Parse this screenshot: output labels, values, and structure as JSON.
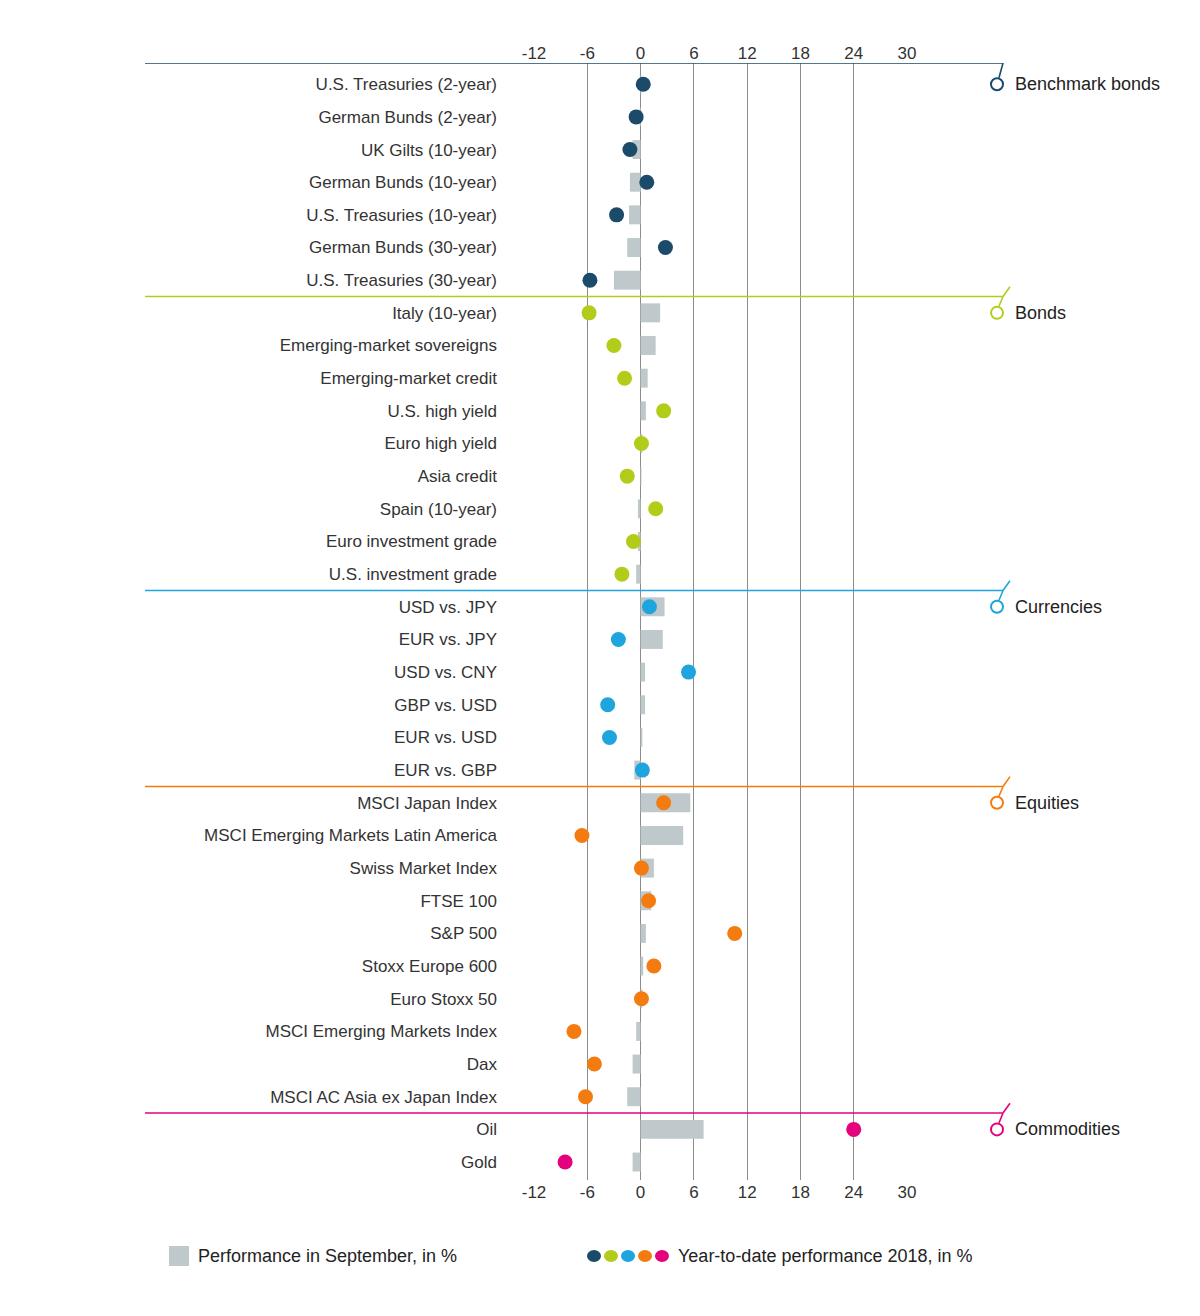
{
  "chart_data": {
    "type": "bar",
    "orientation": "horizontal",
    "grid": true,
    "xlim": [
      -12,
      30
    ],
    "xticks": [
      -12,
      -6,
      0,
      6,
      12,
      18,
      24,
      30
    ],
    "categories": [
      "U.S. Treasuries (2-year)",
      "German Bunds (2-year)",
      "UK Gilts (10-year)",
      "German Bunds (10-year)",
      "U.S. Treasuries (10-year)",
      "German Bunds (30-year)",
      "U.S. Treasuries (30-year)",
      "Italy (10-year)",
      "Emerging-market sovereigns",
      "Emerging-market credit",
      "U.S. high yield",
      "Euro high yield",
      "Asia credit",
      "Spain (10-year)",
      "Euro investment grade",
      "U.S. investment grade",
      "USD vs. JPY",
      "EUR vs. JPY",
      "USD vs. CNY",
      "GBP vs. USD",
      "EUR vs. USD",
      "EUR vs. GBP",
      "MSCI Japan Index",
      "MSCI Emerging Markets Latin America",
      "Swiss Market Index",
      "FTSE 100",
      "S&P 500",
      "Stoxx Europe 600",
      "Euro Stoxx 50",
      "MSCI Emerging Markets Index",
      "Dax",
      "MSCI AC Asia ex Japan Index",
      "Oil",
      "Gold"
    ],
    "sections": [
      {
        "name": "Benchmark bonds",
        "color": "#1b4a6b",
        "categories": [
          "U.S. Treasuries (2-year)",
          "German Bunds (2-year)",
          "UK Gilts (10-year)",
          "German Bunds (10-year)",
          "U.S. Treasuries (10-year)",
          "German Bunds (30-year)",
          "U.S. Treasuries (30-year)"
        ]
      },
      {
        "name": "Bonds",
        "color": "#b3cc1a",
        "categories": [
          "Italy (10-year)",
          "Emerging-market sovereigns",
          "Emerging-market credit",
          "U.S. high yield",
          "Euro high yield",
          "Asia credit",
          "Spain (10-year)",
          "Euro investment grade",
          "U.S. investment grade"
        ]
      },
      {
        "name": "Currencies",
        "color": "#1ea5de",
        "categories": [
          "USD vs. JPY",
          "EUR vs. JPY",
          "USD vs. CNY",
          "GBP vs. USD",
          "EUR vs. USD",
          "EUR vs. GBP"
        ]
      },
      {
        "name": "Equities",
        "color": "#f47b0f",
        "categories": [
          "MSCI Japan Index",
          "MSCI Emerging Markets Latin America",
          "Swiss Market Index",
          "FTSE 100",
          "S&P 500",
          "Stoxx Europe 600",
          "Euro Stoxx 50",
          "MSCI Emerging Markets Index",
          "Dax",
          "MSCI AC Asia ex Japan Index"
        ]
      },
      {
        "name": "Commodities",
        "color": "#e5007d",
        "categories": [
          "Oil",
          "Gold"
        ]
      }
    ],
    "series": [
      {
        "name": "Performance in September, in %",
        "type": "bar",
        "color": "#bfc9cc",
        "values": [
          0.1,
          -0.1,
          -0.9,
          -1.2,
          -1.3,
          -1.5,
          -3.0,
          2.2,
          1.7,
          0.8,
          0.6,
          0.2,
          0.1,
          -0.3,
          -0.3,
          -0.5,
          2.7,
          2.5,
          0.5,
          0.5,
          0.2,
          -0.7,
          5.6,
          4.8,
          1.5,
          1.2,
          0.6,
          0.3,
          0.2,
          -0.5,
          -0.9,
          -1.5,
          7.1,
          -0.9
        ]
      },
      {
        "name": "Year-to-date performance 2018, in %",
        "type": "scatter",
        "marker": "circle",
        "values": [
          0.3,
          -0.5,
          -1.2,
          0.7,
          -2.7,
          2.8,
          -5.7,
          -5.8,
          -3.0,
          -1.8,
          2.6,
          0.1,
          -1.5,
          1.7,
          -0.8,
          -2.1,
          1.0,
          -2.5,
          5.4,
          -3.7,
          -3.5,
          0.2,
          2.6,
          -6.6,
          0.1,
          0.9,
          10.6,
          1.5,
          0.1,
          -7.5,
          -5.2,
          -6.2,
          24.0,
          -8.5
        ]
      }
    ]
  }
}
